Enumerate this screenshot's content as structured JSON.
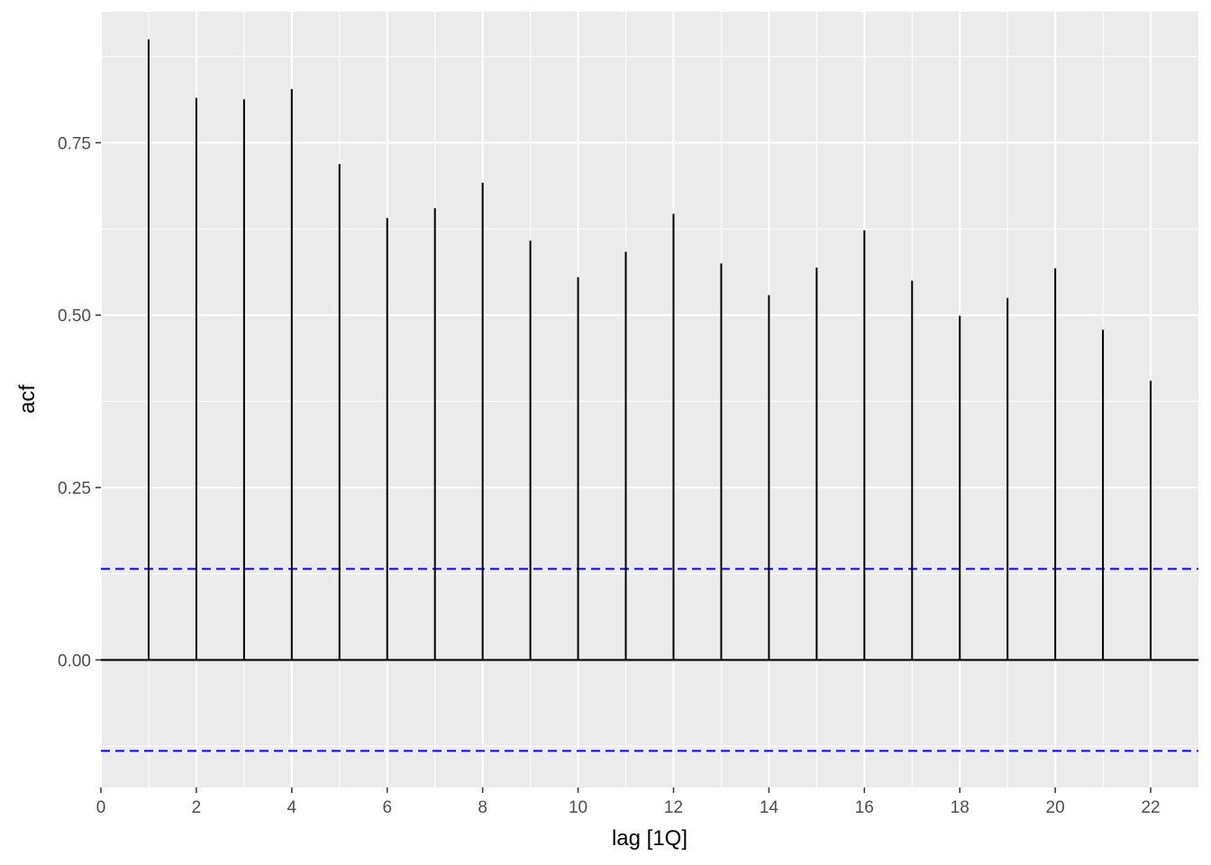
{
  "chart_data": {
    "type": "bar",
    "subtype": "acf-lollipop",
    "xlabel": "lag [1Q]",
    "ylabel": "acf",
    "xlim": [
      0,
      23
    ],
    "ylim": [
      -0.185,
      0.94
    ],
    "x_ticks": [
      0,
      2,
      4,
      6,
      8,
      10,
      12,
      14,
      16,
      18,
      20,
      22
    ],
    "y_ticks": [
      0.0,
      0.25,
      0.5,
      0.75
    ],
    "y_tick_labels": [
      "0.00",
      "0.25",
      "0.50",
      "0.75"
    ],
    "grid": true,
    "background": "#EBEBEB",
    "bar_color": "#000000",
    "confidence_band": {
      "upper": 0.132,
      "lower": -0.132,
      "color": "#0000FF",
      "style": "dashed"
    },
    "x": [
      1,
      2,
      3,
      4,
      5,
      6,
      7,
      8,
      9,
      10,
      11,
      12,
      13,
      14,
      15,
      16,
      17,
      18,
      19,
      20,
      21,
      22
    ],
    "values": [
      0.9,
      0.815,
      0.813,
      0.828,
      0.719,
      0.641,
      0.655,
      0.692,
      0.608,
      0.555,
      0.592,
      0.647,
      0.575,
      0.529,
      0.569,
      0.623,
      0.55,
      0.499,
      0.525,
      0.568,
      0.479,
      0.405
    ]
  }
}
